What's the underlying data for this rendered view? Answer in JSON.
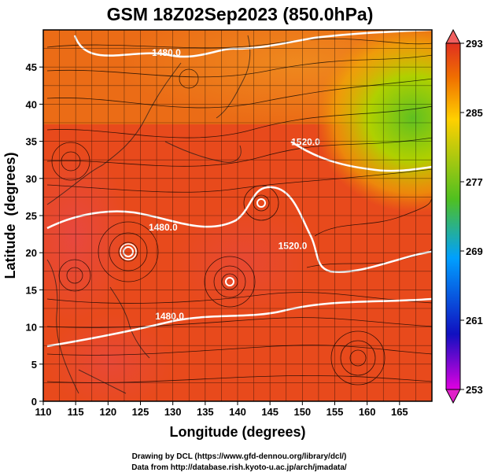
{
  "chart_data": {
    "type": "heatmap",
    "title": "GSM 18Z02Sep2023 (850.0hPa)",
    "xlabel": "Longitude (degrees)",
    "ylabel": "Latitude  (degrees)",
    "xlim": [
      110,
      170
    ],
    "ylim": [
      0,
      50
    ],
    "x_ticks": [
      110,
      115,
      120,
      125,
      130,
      135,
      140,
      145,
      150,
      155,
      160,
      165
    ],
    "y_ticks": [
      0,
      5,
      10,
      15,
      20,
      25,
      30,
      35,
      40,
      45
    ],
    "colorbar": {
      "ticks": [
        253,
        261,
        269,
        277,
        285,
        293
      ],
      "min": 253,
      "max": 293,
      "colors": [
        "#e000e0",
        "#1010c0",
        "#00a0ff",
        "#50c020",
        "#ffd000",
        "#f07000",
        "#e03020"
      ]
    },
    "contour_labels": [
      {
        "text": "1480.0",
        "lon": 129,
        "lat": 46.5
      },
      {
        "text": "1520.0",
        "lon": 150.5,
        "lat": 34.5
      },
      {
        "text": "1480.0",
        "lon": 128.5,
        "lat": 23.0
      },
      {
        "text": "1520.0",
        "lon": 148.5,
        "lat": 20.5
      },
      {
        "text": "1480.0",
        "lon": 129.5,
        "lat": 11.0
      }
    ],
    "grid": true,
    "streamlines": true
  },
  "credits": {
    "line1": "Drawing by DCL (https://www.gfd-dennou.org/library/dcl/)",
    "line2": "Data from http://database.rish.kyoto-u.ac.jp/arch/jmadata/"
  }
}
